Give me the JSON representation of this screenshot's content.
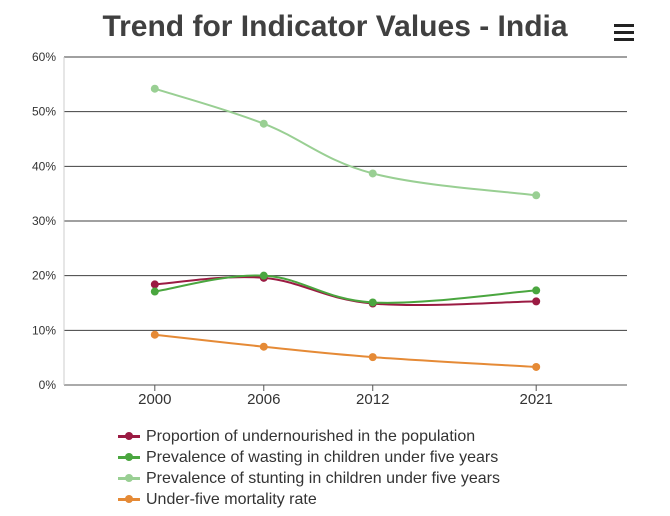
{
  "header": {
    "title": "Trend for Indicator Values - India",
    "menu_icon": "hamburger-menu-icon"
  },
  "chart_data": {
    "type": "line",
    "title": "Trend for Indicator Values - India",
    "xlabel": "",
    "ylabel": "",
    "x": [
      2000,
      2006,
      2012,
      2021
    ],
    "x_tick_labels": [
      "2000",
      "2006",
      "2012",
      "2021"
    ],
    "ylim": [
      0,
      60
    ],
    "y_ticks": [
      0,
      10,
      20,
      30,
      40,
      50,
      60
    ],
    "y_tick_labels": [
      "0%",
      "10%",
      "20%",
      "30%",
      "40%",
      "50%",
      "60%"
    ],
    "grid": true,
    "legend_position": "bottom",
    "series": [
      {
        "name": "Proportion of undernourished in the population",
        "color": "#9b1b43",
        "values": [
          18.4,
          19.6,
          14.9,
          15.3
        ]
      },
      {
        "name": "Prevalence of wasting in children under five years",
        "color": "#4aa63f",
        "values": [
          17.1,
          20.0,
          15.1,
          17.3
        ]
      },
      {
        "name": "Prevalence of stunting in children under five years",
        "color": "#99cf93",
        "values": [
          54.2,
          47.8,
          38.7,
          34.7
        ]
      },
      {
        "name": "Under-five mortality rate",
        "color": "#e58a36",
        "values": [
          9.2,
          7.0,
          5.1,
          3.3
        ]
      }
    ]
  }
}
